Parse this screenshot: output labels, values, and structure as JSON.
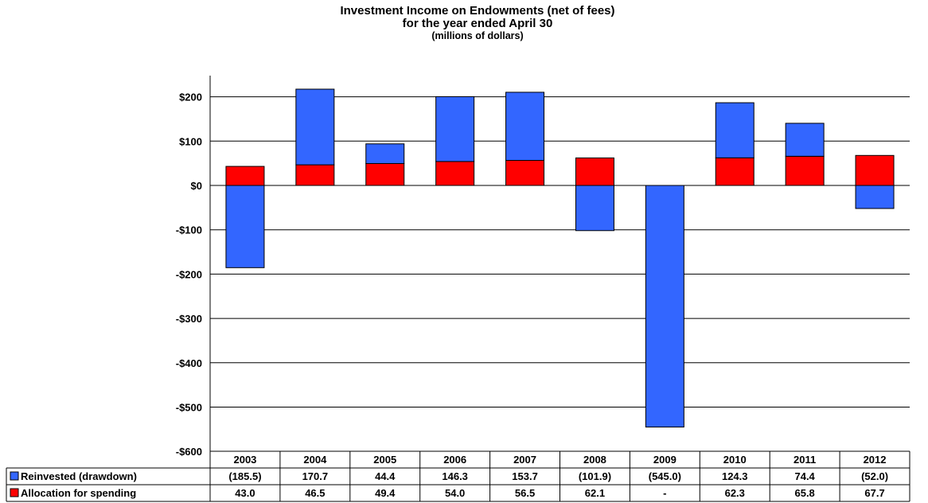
{
  "chart_data": {
    "type": "bar",
    "stacked": true,
    "title": "Investment Income on Endowments (net of fees)",
    "subtitle_1": "for the year ended April 30",
    "subtitle_2": "(millions of dollars)",
    "categories": [
      "2003",
      "2004",
      "2005",
      "2006",
      "2007",
      "2008",
      "2009",
      "2010",
      "2011",
      "2012"
    ],
    "ylim": [
      -600,
      250
    ],
    "yticks": [
      200,
      100,
      0,
      -100,
      -200,
      -300,
      -400,
      -500,
      -600
    ],
    "ytick_labels": [
      "$200",
      "$100",
      "$0",
      "-$100",
      "-$200",
      "-$300",
      "-$400",
      "-$500",
      "-$600"
    ],
    "grid": true,
    "series": [
      {
        "name": "Reinvested (drawdown)",
        "color": "#3366FF",
        "values": [
          -185.5,
          170.7,
          44.4,
          146.3,
          153.7,
          -101.9,
          -545.0,
          124.3,
          74.4,
          -52.0
        ],
        "labels": [
          "(185.5)",
          "170.7",
          "44.4",
          "146.3",
          "153.7",
          "(101.9)",
          "(545.0)",
          "124.3",
          "74.4",
          "(52.0)"
        ]
      },
      {
        "name": "Allocation for spending",
        "color": "#FF0000",
        "values": [
          43.0,
          46.5,
          49.4,
          54.0,
          56.5,
          62.1,
          0,
          62.3,
          65.8,
          67.7
        ],
        "labels": [
          "43.0",
          "46.5",
          "49.4",
          "54.0",
          "56.5",
          "62.1",
          "-",
          "62.3",
          "65.8",
          "67.7"
        ]
      }
    ]
  }
}
